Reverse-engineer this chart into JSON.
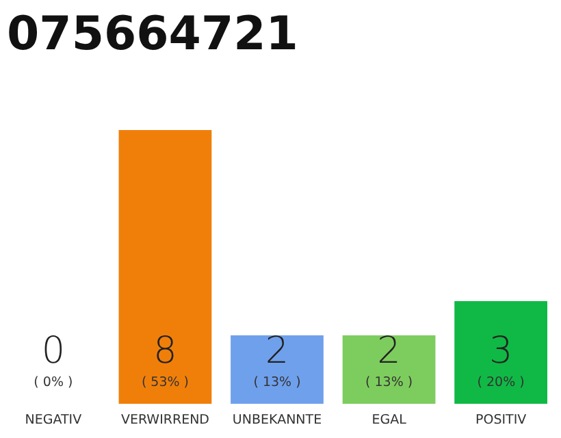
{
  "chart_data": {
    "type": "bar",
    "title": "075664721",
    "categories": [
      "NEGATIV",
      "VERWIRREND",
      "UNBEKANNTE",
      "EGAL",
      "POSITIV"
    ],
    "values": [
      0,
      8,
      2,
      2,
      3
    ],
    "colors": [
      "#555555",
      "#f07f0a",
      "#6fa0ec",
      "#7dcd5e",
      "#10b945"
    ],
    "data_labels": true,
    "annotations": [
      "( 0% )",
      "( 53% )",
      "( 13% )",
      "( 13% )",
      "( 20% )"
    ]
  }
}
